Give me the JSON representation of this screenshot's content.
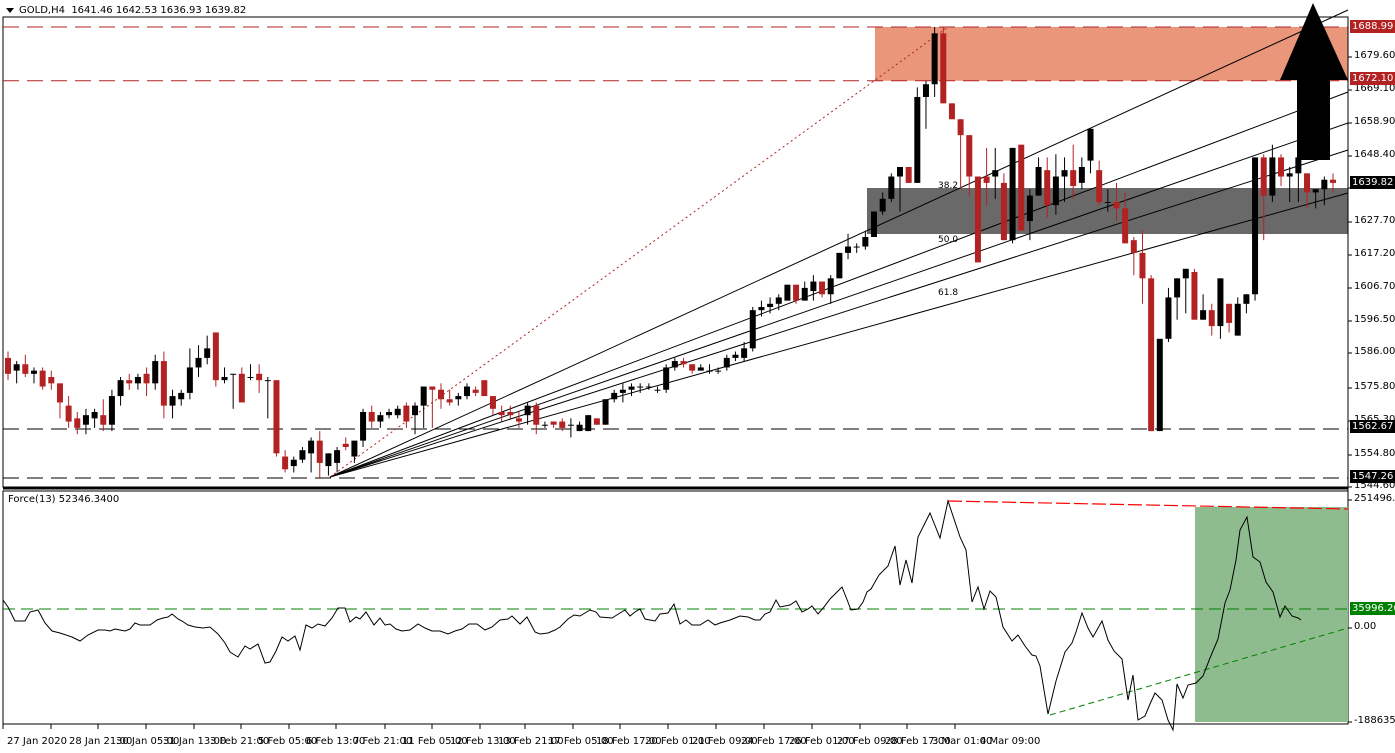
{
  "header": {
    "symbol_timeframe": "GOLD,H4",
    "ohlc": "1641.46 1642.53 1636.93 1639.82"
  },
  "indicator": {
    "label": "Force(13) 52346.3400"
  },
  "colors": {
    "bull": "#000000",
    "bear": "#b22222",
    "resistance_zone": "#e9967a",
    "support_zone": "#696969",
    "oscillator_zone": "#8fbc8f",
    "resistance_line": "#b22222",
    "osc_level_line": "#008000",
    "osc_top_line": "#ff0000"
  },
  "chart_data": [
    {
      "type": "candlestick",
      "title": "GOLD,H4",
      "ylabel": "Price",
      "ylim": [
        1544.6,
        1695.0
      ],
      "y_ticks": [
        "1679.60",
        "1669.10",
        "1658.90",
        "1648.40",
        "1637.90",
        "1627.70",
        "1617.20",
        "1606.70",
        "1596.50",
        "1586.00",
        "1575.80",
        "1565.30",
        "1554.80",
        "1544.60"
      ],
      "x_ticks": [
        "27 Jan 2020",
        "28 Jan 21:00",
        "30 Jan 05:00",
        "31 Jan 13:00",
        "3 Feb 21:00",
        "5 Feb 05:00",
        "6 Feb 13:00",
        "7 Feb 21:00",
        "11 Feb 05:00",
        "12 Feb 13:00",
        "13 Feb 21:00",
        "17 Feb 05:00",
        "18 Feb 17:00",
        "20 Feb 01:00",
        "21 Feb 09:00",
        "24 Feb 17:00",
        "26 Feb 01:00",
        "27 Feb 09:00",
        "28 Feb 17:00",
        "3 Mar 01:00",
        "4 Mar 09:00"
      ],
      "price_tags": [
        {
          "value": "1688.99",
          "kind": "resistance"
        },
        {
          "value": "1672.10",
          "kind": "resistance"
        },
        {
          "value": "1639.82",
          "kind": "current"
        },
        {
          "value": "1562.67",
          "kind": "support"
        },
        {
          "value": "1547.26",
          "kind": "support"
        }
      ],
      "horizontal_levels": [
        1688.99,
        1672.1,
        1562.67,
        1547.26
      ],
      "zones": [
        {
          "name": "resistance",
          "from": 1672.1,
          "to": 1688.99
        },
        {
          "name": "fib-support",
          "from": 1624.5,
          "to": 1637.0
        }
      ],
      "fibonacci_fan_labels": [
        "38.2",
        "50.0",
        "61.8"
      ],
      "annotation": "Large black upward arrow indicating expected breakout toward 1688.99 resistance",
      "candles": [
        [
          1585,
          1587,
          1578,
          1580
        ],
        [
          1581,
          1584,
          1577,
          1583
        ],
        [
          1583,
          1586,
          1579,
          1580
        ],
        [
          1580,
          1582,
          1577,
          1581
        ],
        [
          1581,
          1582,
          1575,
          1576
        ],
        [
          1579,
          1581,
          1575,
          1577
        ],
        [
          1577,
          1577,
          1566,
          1571
        ],
        [
          1570,
          1573,
          1563,
          1565
        ],
        [
          1566,
          1568,
          1561,
          1563
        ],
        [
          1564,
          1569,
          1561,
          1567
        ],
        [
          1566,
          1569,
          1563,
          1568
        ],
        [
          1567,
          1572,
          1562,
          1564
        ],
        [
          1564,
          1575,
          1562,
          1573
        ],
        [
          1573,
          1579,
          1570,
          1578
        ],
        [
          1578,
          1580,
          1575,
          1577
        ],
        [
          1577,
          1580,
          1575,
          1579
        ],
        [
          1580,
          1582,
          1573,
          1577
        ],
        [
          1577,
          1586,
          1575,
          1584
        ],
        [
          1584,
          1587,
          1566,
          1570
        ],
        [
          1570,
          1575,
          1566,
          1573
        ],
        [
          1572,
          1575,
          1570,
          1574
        ],
        [
          1574,
          1588,
          1572,
          1582
        ],
        [
          1582,
          1589,
          1579,
          1585
        ],
        [
          1585,
          1592,
          1583,
          1588
        ],
        [
          1593,
          1593,
          1576,
          1578
        ],
        [
          1578,
          1582,
          1577,
          1579
        ],
        [
          1580,
          1580,
          1569,
          1580
        ],
        [
          1580,
          1582,
          1571,
          1571
        ],
        [
          1579,
          1583,
          1578,
          1579
        ],
        [
          1580,
          1583,
          1574,
          1578
        ],
        [
          1578,
          1579,
          1566,
          1578
        ],
        [
          1578,
          1578,
          1554,
          1555
        ],
        [
          1554,
          1556,
          1549,
          1550
        ],
        [
          1551,
          1554,
          1549,
          1553
        ],
        [
          1553,
          1557,
          1552,
          1556
        ],
        [
          1555,
          1560,
          1549,
          1559
        ],
        [
          1559,
          1562,
          1547,
          1552
        ],
        [
          1551,
          1555,
          1548,
          1555
        ],
        [
          1552,
          1557,
          1549,
          1556
        ],
        [
          1558,
          1560,
          1556,
          1557
        ],
        [
          1554,
          1559,
          1552,
          1559
        ],
        [
          1559,
          1569,
          1557,
          1568
        ],
        [
          1568,
          1570,
          1563,
          1565
        ],
        [
          1565,
          1568,
          1563,
          1567
        ],
        [
          1567,
          1569,
          1566,
          1568
        ],
        [
          1567,
          1570,
          1566,
          1569
        ],
        [
          1570,
          1571,
          1563,
          1565
        ],
        [
          1567,
          1571,
          1561,
          1570
        ],
        [
          1570,
          1576,
          1563,
          1576
        ],
        [
          1576,
          1576,
          1563,
          1575
        ],
        [
          1575,
          1577,
          1569,
          1572
        ],
        [
          1572,
          1575,
          1570,
          1571
        ],
        [
          1572,
          1574,
          1570,
          1573
        ],
        [
          1573,
          1577,
          1572,
          1576
        ],
        [
          1575,
          1576,
          1573,
          1574
        ],
        [
          1578,
          1578,
          1573,
          1573
        ],
        [
          1573,
          1573,
          1567,
          1569
        ],
        [
          1568,
          1570,
          1565,
          1567
        ],
        [
          1568,
          1570,
          1566,
          1567
        ],
        [
          1566,
          1568,
          1563,
          1565
        ],
        [
          1567,
          1571,
          1564,
          1570
        ],
        [
          1570,
          1571,
          1561,
          1564
        ],
        [
          1564,
          1565,
          1563,
          1564
        ],
        [
          1565,
          1565,
          1563,
          1564
        ],
        [
          1565,
          1566,
          1562,
          1563
        ],
        [
          1564,
          1566,
          1560,
          1564
        ],
        [
          1562,
          1565,
          1562,
          1564
        ],
        [
          1562,
          1567,
          1563,
          1567
        ],
        [
          1566,
          1565,
          1564,
          1564
        ],
        [
          1564,
          1572,
          1564,
          1572
        ],
        [
          1572,
          1575,
          1571,
          1574
        ],
        [
          1574,
          1577,
          1571,
          1575
        ],
        [
          1575,
          1577,
          1573,
          1576
        ],
        [
          1576,
          1577,
          1574,
          1576
        ],
        [
          1576,
          1577,
          1575,
          1576
        ],
        [
          1575,
          1576,
          1574,
          1575
        ],
        [
          1575,
          1583,
          1574,
          1582
        ],
        [
          1582,
          1585,
          1581,
          1584
        ],
        [
          1584,
          1585,
          1582,
          1583
        ],
        [
          1583,
          1583,
          1580,
          1581
        ],
        [
          1581,
          1583,
          1581,
          1582
        ],
        [
          1581,
          1583,
          1580,
          1581
        ],
        [
          1581,
          1582,
          1580,
          1581
        ],
        [
          1582,
          1586,
          1581,
          1585
        ],
        [
          1585,
          1587,
          1584,
          1586
        ],
        [
          1585,
          1590,
          1584,
          1588
        ],
        [
          1588,
          1601,
          1587,
          1600
        ],
        [
          1600,
          1603,
          1598,
          1601
        ],
        [
          1601,
          1604,
          1599,
          1602
        ],
        [
          1602,
          1605,
          1600,
          1604
        ],
        [
          1603,
          1608,
          1603,
          1608
        ],
        [
          1608,
          1608,
          1602,
          1603
        ],
        [
          1603,
          1609,
          1603,
          1607
        ],
        [
          1606,
          1611,
          1603,
          1609
        ],
        [
          1609,
          1609,
          1604,
          1605
        ],
        [
          1605,
          1611,
          1602,
          1610
        ],
        [
          1610,
          1618,
          1610,
          1618
        ],
        [
          1618,
          1624,
          1616,
          1620
        ],
        [
          1620,
          1621,
          1618,
          1620
        ],
        [
          1620,
          1625,
          1619,
          1623
        ],
        [
          1623,
          1631,
          1623,
          1631
        ],
        [
          1631,
          1637,
          1630,
          1635
        ],
        [
          1635,
          1643,
          1634,
          1642
        ],
        [
          1642,
          1645,
          1631,
          1645
        ],
        [
          1645,
          1645,
          1640,
          1640
        ],
        [
          1640,
          1670,
          1640,
          1667
        ],
        [
          1667,
          1672,
          1657,
          1671
        ],
        [
          1671,
          1689,
          1667,
          1687
        ],
        [
          1687,
          1689,
          1667,
          1665
        ],
        [
          1665,
          1664,
          1660,
          1660
        ],
        [
          1660,
          1655,
          1638,
          1655
        ],
        [
          1655,
          1655,
          1636,
          1642
        ],
        [
          1642,
          1642,
          1616,
          1615
        ],
        [
          1642,
          1651,
          1633,
          1640
        ],
        [
          1642,
          1651,
          1635,
          1644
        ],
        [
          1640,
          1643,
          1622,
          1622
        ],
        [
          1622,
          1642,
          1621,
          1651
        ],
        [
          1652,
          1652,
          1636,
          1625
        ],
        [
          1628,
          1638,
          1622,
          1636
        ],
        [
          1636,
          1648,
          1636,
          1645
        ],
        [
          1644,
          1648,
          1629,
          1633
        ],
        [
          1633,
          1649,
          1630,
          1642
        ],
        [
          1642,
          1648,
          1634,
          1644
        ],
        [
          1644,
          1652,
          1635,
          1639
        ],
        [
          1640,
          1648,
          1638,
          1645
        ],
        [
          1647,
          1657,
          1643,
          1657
        ],
        [
          1644,
          1647,
          1633,
          1634
        ],
        [
          1634,
          1638,
          1631,
          1634
        ],
        [
          1634,
          1640,
          1628,
          1632
        ],
        [
          1632,
          1637,
          1622,
          1621
        ],
        [
          1622,
          1623,
          1611,
          1618
        ],
        [
          1618,
          1625,
          1602,
          1610
        ],
        [
          1610,
          1611,
          1562,
          1562
        ],
        [
          1562,
          1590,
          1563,
          1591
        ],
        [
          1591,
          1607,
          1590,
          1604
        ],
        [
          1604,
          1609,
          1597,
          1610
        ],
        [
          1610,
          1612,
          1599,
          1613
        ],
        [
          1612,
          1613,
          1600,
          1597
        ],
        [
          1597,
          1605,
          1597,
          1600
        ],
        [
          1600,
          1602,
          1592,
          1595
        ],
        [
          1595,
          1602,
          1591,
          1610
        ],
        [
          1602,
          1601,
          1593,
          1596
        ],
        [
          1592,
          1604,
          1592,
          1602
        ],
        [
          1602,
          1605,
          1599,
          1605
        ],
        [
          1605,
          1647,
          1603,
          1648
        ],
        [
          1648,
          1649,
          1622,
          1636
        ],
        [
          1636,
          1652,
          1634,
          1648
        ],
        [
          1648,
          1649,
          1639,
          1642
        ],
        [
          1642,
          1645,
          1634,
          1643
        ],
        [
          1643,
          1649,
          1634,
          1648
        ],
        [
          1643,
          1643,
          1632,
          1637
        ],
        [
          1637,
          1638,
          1632,
          1638
        ],
        [
          1638,
          1642,
          1633,
          1641
        ],
        [
          1641,
          1643,
          1637,
          1640
        ]
      ]
    },
    {
      "type": "line",
      "title": "Force(13) 52346.3400",
      "ylim": [
        -188635.0,
        251496.2
      ],
      "y_ticks": [
        "251496.20",
        "0.00",
        "-188635.0"
      ],
      "level_tag": "35996.268",
      "levels": [
        35996.268,
        0.0
      ],
      "current_value": 52346.34,
      "zones": [
        {
          "name": "bullish-momentum",
          "x_from": "3 Mar 01:00 area",
          "x_to": "right edge"
        }
      ]
    }
  ]
}
